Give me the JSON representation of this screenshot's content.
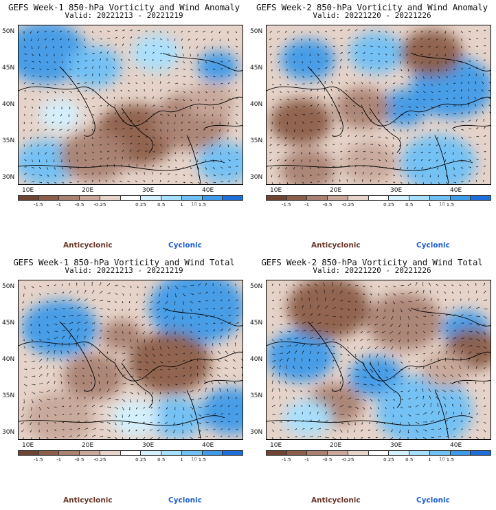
{
  "colors": {
    "anticyclonic_text": "#6b3a2a",
    "cyclonic_text": "#1e5fd1",
    "colorbar": [
      "#6e4533",
      "#8b5e4a",
      "#a98272",
      "#c7a89a",
      "#e6d3c9",
      "#ffffff",
      "#d3f1ff",
      "#a6e0ff",
      "#6fc0f5",
      "#3f9ae8",
      "#1e6fd9"
    ],
    "map_background": "#f2e6df",
    "coastline": "#000000"
  },
  "colorbar_labels": [
    "-1.5",
    "-1",
    "-0.5",
    "-0.25",
    "0.25",
    "0.5",
    "1",
    "1.5"
  ],
  "colorbar_mid_label": "10",
  "lat_labels": [
    "50N",
    "45N",
    "40N",
    "35N",
    "30N"
  ],
  "lon_labels": [
    "10E",
    "20E",
    "30E",
    "40E"
  ],
  "legend": {
    "anticyclonic": "Anticyclonic",
    "cyclonic": "Cyclonic"
  },
  "panels": [
    {
      "title": "GEFS Week-1 850-hPa Vorticity and Wind Anomaly",
      "valid": "Valid: 20221213 - 20221219"
    },
    {
      "title": "GEFS Week-2 850-hPa Vorticity and Wind Anomaly",
      "valid": "Valid: 20221220 - 20221226"
    },
    {
      "title": "GEFS Week-1 850-hPa Vorticity and Wind Total",
      "valid": "Valid: 20221213 - 20221219"
    },
    {
      "title": "GEFS Week-2 850-hPa Vorticity and Wind Total",
      "valid": "Valid: 20221220 - 20221226"
    }
  ]
}
